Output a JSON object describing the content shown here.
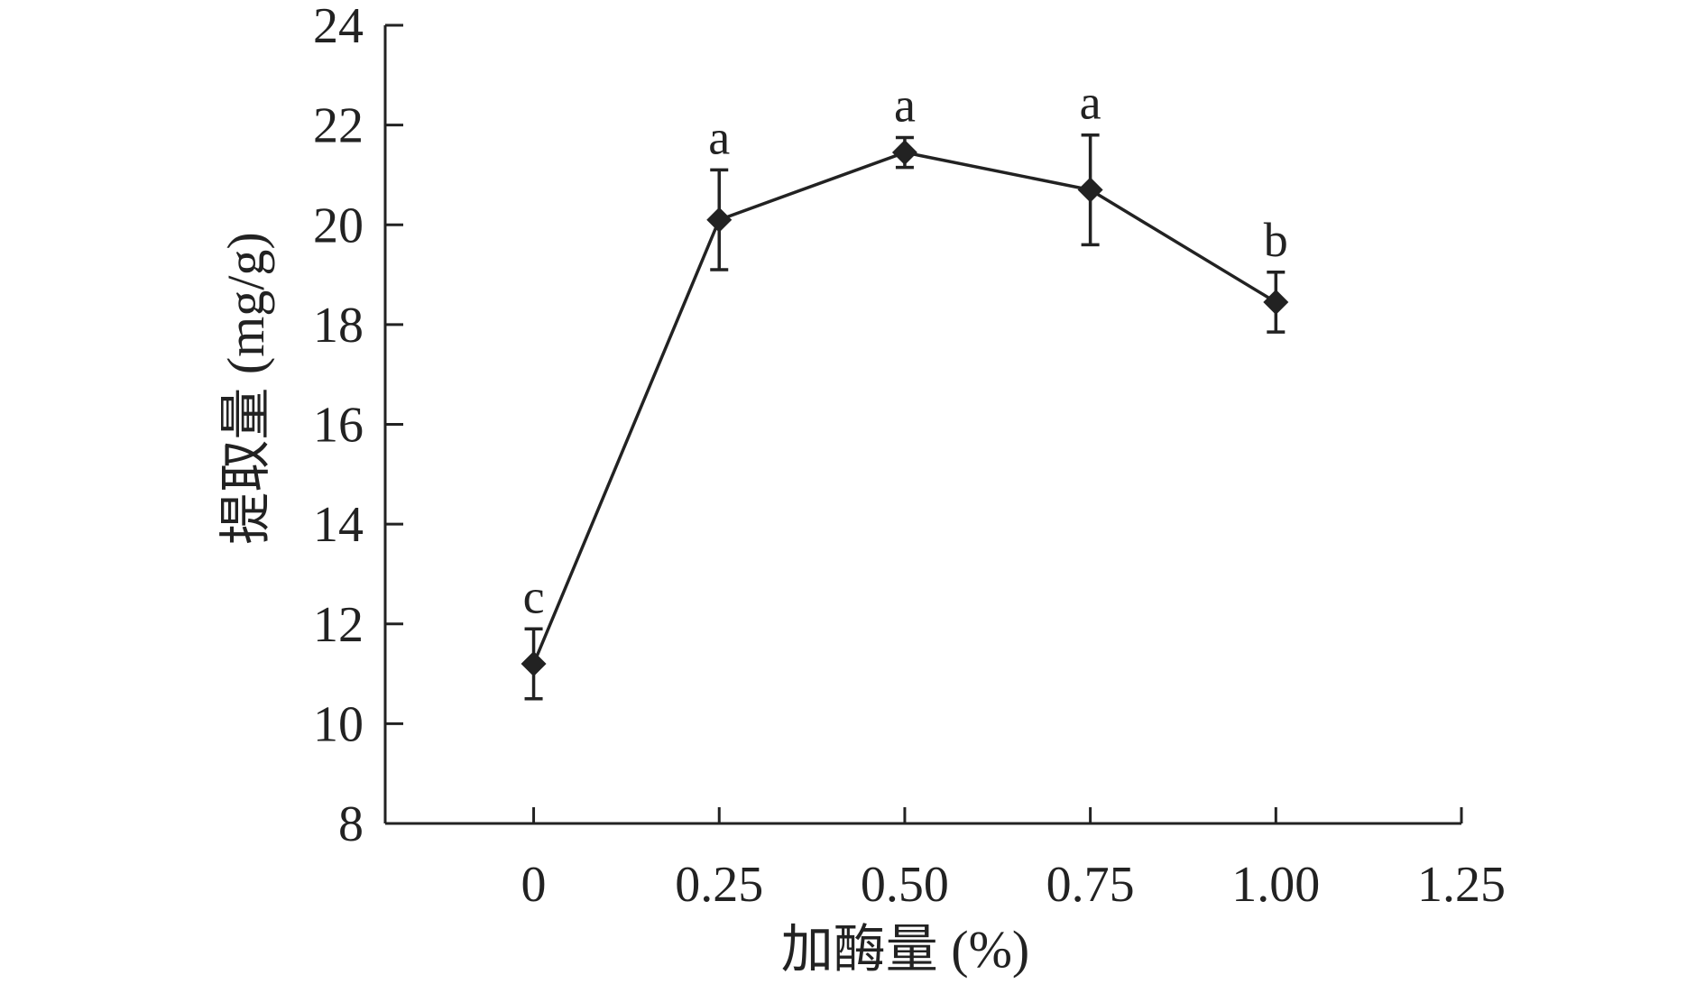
{
  "chart_data": {
    "type": "line",
    "xlabel": "加酶量 (%)",
    "ylabel": "提取量 (mg/g)",
    "xlim": [
      -0.2,
      1.25
    ],
    "ylim": [
      8,
      24
    ],
    "x_ticks": [
      {
        "value": 0,
        "label": "0"
      },
      {
        "value": 0.25,
        "label": "0.25"
      },
      {
        "value": 0.5,
        "label": "0.50"
      },
      {
        "value": 0.75,
        "label": "0.75"
      },
      {
        "value": 1.0,
        "label": "1.00"
      },
      {
        "value": 1.25,
        "label": "1.25"
      }
    ],
    "y_ticks": [
      {
        "value": 8,
        "label": "8"
      },
      {
        "value": 10,
        "label": "10"
      },
      {
        "value": 12,
        "label": "12"
      },
      {
        "value": 14,
        "label": "14"
      },
      {
        "value": 16,
        "label": "16"
      },
      {
        "value": 18,
        "label": "18"
      },
      {
        "value": 20,
        "label": "20"
      },
      {
        "value": 22,
        "label": "22"
      },
      {
        "value": 24,
        "label": "24"
      }
    ],
    "grid": false,
    "marker": "diamond",
    "line_color": "#222222",
    "series": [
      {
        "points": [
          {
            "x": 0,
            "y": 11.2,
            "err": 0.7,
            "label": "c"
          },
          {
            "x": 0.25,
            "y": 20.1,
            "err": 1.0,
            "label": "a"
          },
          {
            "x": 0.5,
            "y": 21.45,
            "err": 0.3,
            "label": "a"
          },
          {
            "x": 0.75,
            "y": 20.7,
            "err": 1.1,
            "label": "a"
          },
          {
            "x": 1.0,
            "y": 18.45,
            "err": 0.6,
            "label": "b"
          }
        ]
      }
    ]
  }
}
